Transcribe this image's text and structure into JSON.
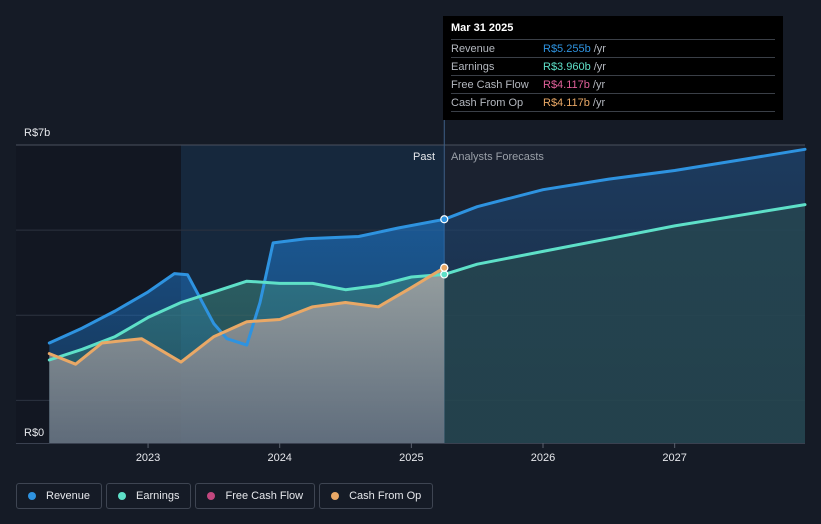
{
  "chart_data": {
    "type": "area",
    "title": "",
    "y_axis": {
      "top_label": "R$7b",
      "bottom_label": "R$0",
      "ylim": [
        0,
        7
      ]
    },
    "x_ticks": [
      {
        "label": "2023",
        "x": 2023.0
      },
      {
        "label": "2024",
        "x": 2024.0
      },
      {
        "label": "2025",
        "x": 2025.0
      },
      {
        "label": "2026",
        "x": 2026.0
      },
      {
        "label": "2027",
        "x": 2027.0
      }
    ],
    "xlim": [
      2022.24,
      2027.99
    ],
    "past_start": 2023.25,
    "divider": 2025.25,
    "region_labels": {
      "past": "Past",
      "forecast": "Analysts Forecasts"
    },
    "series": [
      {
        "name": "Revenue",
        "color": "#2e93e0",
        "points": [
          [
            2022.25,
            2.35
          ],
          [
            2022.5,
            2.7
          ],
          [
            2022.75,
            3.1
          ],
          [
            2023.0,
            3.55
          ],
          [
            2023.2,
            3.98
          ],
          [
            2023.3,
            3.95
          ],
          [
            2023.5,
            2.8
          ],
          [
            2023.6,
            2.45
          ],
          [
            2023.75,
            2.3
          ],
          [
            2023.85,
            3.3
          ],
          [
            2023.95,
            4.7
          ],
          [
            2024.2,
            4.8
          ],
          [
            2024.6,
            4.85
          ],
          [
            2024.9,
            5.05
          ],
          [
            2025.25,
            5.255
          ]
        ],
        "forecast": [
          [
            2025.25,
            5.255
          ],
          [
            2025.5,
            5.55
          ],
          [
            2026.0,
            5.95
          ],
          [
            2026.5,
            6.2
          ],
          [
            2027.0,
            6.4
          ],
          [
            2027.5,
            6.65
          ],
          [
            2027.99,
            6.9
          ]
        ]
      },
      {
        "name": "Earnings",
        "color": "#5ee0c8",
        "points": [
          [
            2022.25,
            1.95
          ],
          [
            2022.5,
            2.2
          ],
          [
            2022.75,
            2.5
          ],
          [
            2023.0,
            2.95
          ],
          [
            2023.25,
            3.3
          ],
          [
            2023.5,
            3.55
          ],
          [
            2023.75,
            3.8
          ],
          [
            2024.0,
            3.75
          ],
          [
            2024.25,
            3.75
          ],
          [
            2024.5,
            3.6
          ],
          [
            2024.75,
            3.7
          ],
          [
            2025.0,
            3.9
          ],
          [
            2025.25,
            3.96
          ]
        ],
        "forecast": [
          [
            2025.25,
            3.96
          ],
          [
            2025.5,
            4.2
          ],
          [
            2026.0,
            4.5
          ],
          [
            2026.5,
            4.8
          ],
          [
            2027.0,
            5.1
          ],
          [
            2027.5,
            5.35
          ],
          [
            2027.99,
            5.6
          ]
        ]
      },
      {
        "name": "Free Cash Flow",
        "color": "#c2477e",
        "points": [
          [
            2025.25,
            4.117
          ]
        ],
        "forecast": []
      },
      {
        "name": "Cash From Op",
        "color": "#e9a866",
        "points": [
          [
            2022.25,
            2.1
          ],
          [
            2022.45,
            1.85
          ],
          [
            2022.65,
            2.35
          ],
          [
            2022.95,
            2.45
          ],
          [
            2023.25,
            1.9
          ],
          [
            2023.5,
            2.5
          ],
          [
            2023.75,
            2.85
          ],
          [
            2024.0,
            2.9
          ],
          [
            2024.25,
            3.2
          ],
          [
            2024.5,
            3.3
          ],
          [
            2024.75,
            3.2
          ],
          [
            2025.0,
            3.65
          ],
          [
            2025.25,
            4.117
          ]
        ],
        "forecast": []
      }
    ]
  },
  "tooltip": {
    "date": "Mar 31 2025",
    "rows": [
      {
        "label": "Revenue",
        "value": "R$5.255b",
        "unit": "/yr",
        "color": "#2e93e0"
      },
      {
        "label": "Earnings",
        "value": "R$3.960b",
        "unit": "/yr",
        "color": "#5ee0c8"
      },
      {
        "label": "Free Cash Flow",
        "value": "R$4.117b",
        "unit": "/yr",
        "color": "#c2477e"
      },
      {
        "label": "Cash From Op",
        "value": "R$4.117b",
        "unit": "/yr",
        "color": "#e9a866"
      }
    ]
  },
  "legend": {
    "items": [
      {
        "label": "Revenue",
        "color": "#2e93e0"
      },
      {
        "label": "Earnings",
        "color": "#5ee0c8"
      },
      {
        "label": "Free Cash Flow",
        "color": "#c2477e"
      },
      {
        "label": "Cash From Op",
        "color": "#e9a866"
      }
    ]
  }
}
